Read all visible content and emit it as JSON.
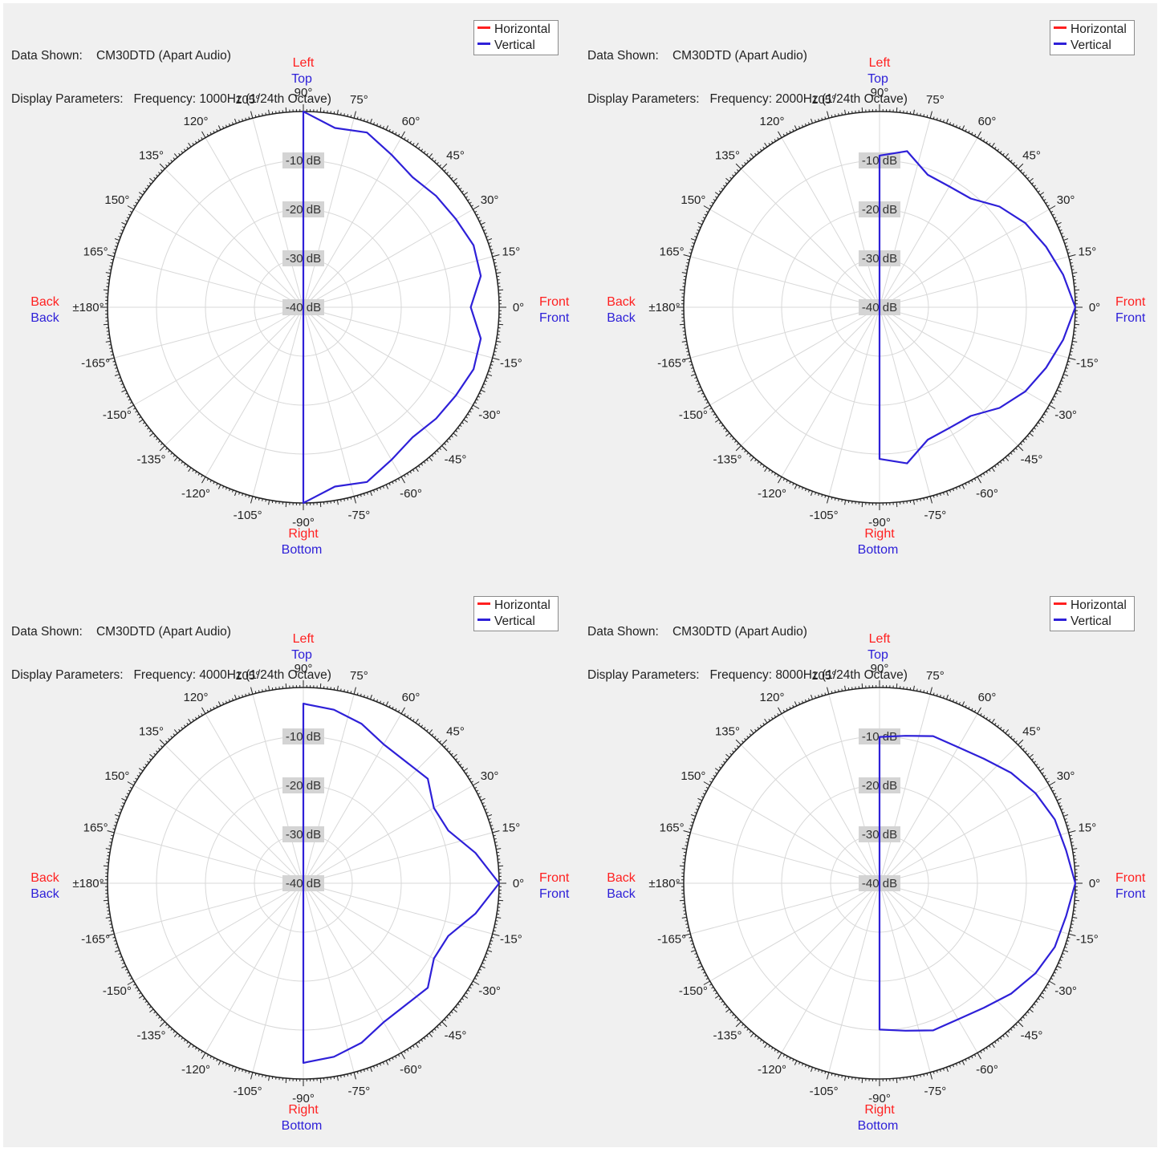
{
  "colors": {
    "horizontal": "#ff2020",
    "vertical": "#2e20d8",
    "grid": "#d8d8d8",
    "axis": "#222222"
  },
  "common": {
    "data_label": "Data Shown:",
    "data_value": "CM30DTD (Apart Audio)",
    "params_label": "Display Parameters:",
    "legend": {
      "horizontal": "Horizontal",
      "vertical": "Vertical"
    },
    "labels": {
      "left": "Left",
      "top": "Top",
      "right": "Right",
      "bottom": "Bottom",
      "back": "Back",
      "front": "Front"
    },
    "db_labels": [
      "-10 dB",
      "-20 dB",
      "-30 dB",
      "-40 dB"
    ],
    "angle_labels": [
      "90°",
      "75°",
      "60°",
      "45°",
      "30°",
      "15°",
      "0°",
      "-15°",
      "-30°",
      "-45°",
      "-60°",
      "-75°",
      "-90°",
      "-105°",
      "-120°",
      "-135°",
      "-150°",
      "-165°",
      "±180°",
      "165°",
      "150°",
      "135°",
      "120°",
      "105°"
    ]
  },
  "chart_data": [
    {
      "type": "polar",
      "params_value": "Frequency: 1000Hz (1/24th Octave)",
      "radial_range_db": [
        -40,
        0
      ],
      "angles_deg": [
        90,
        80,
        70,
        60,
        50,
        40,
        30,
        20,
        10,
        0,
        -10,
        -20,
        -30,
        -40,
        -50,
        -60,
        -70,
        -80,
        -90
      ],
      "series": [
        {
          "name": "Vertical",
          "values_db": [
            0,
            -2.8,
            -2.0,
            -4.0,
            -5.3,
            -4.6,
            -4.0,
            -3.0,
            -3.2,
            -5.8,
            -3.2,
            -3.0,
            -4.0,
            -4.6,
            -5.3,
            -4.0,
            -2.0,
            -2.8,
            0
          ]
        }
      ]
    },
    {
      "type": "polar",
      "params_value": "Frequency: 2000Hz (1/24th Octave)",
      "radial_range_db": [
        -40,
        0
      ],
      "angles_deg": [
        90,
        80,
        70,
        60,
        50,
        40,
        30,
        20,
        10,
        0,
        -10,
        -20,
        -30,
        -40,
        -50,
        -60,
        -70,
        -80,
        -90
      ],
      "series": [
        {
          "name": "Vertical",
          "values_db": [
            -9.0,
            -7.6,
            -11.2,
            -11.5,
            -11.0,
            -8.0,
            -5.6,
            -3.8,
            -1.9,
            0,
            -1.9,
            -3.8,
            -5.6,
            -8.0,
            -11.0,
            -11.5,
            -11.2,
            -7.6,
            -9.0
          ]
        }
      ]
    },
    {
      "type": "polar",
      "params_value": "Frequency: 4000Hz (1/24th Octave)",
      "radial_range_db": [
        -40,
        0
      ],
      "angles_deg": [
        90,
        80,
        70,
        60,
        50,
        40,
        30,
        20,
        10,
        0,
        -10,
        -20,
        -30,
        -40,
        -50,
        -60,
        -70,
        -80,
        -90
      ],
      "series": [
        {
          "name": "Vertical",
          "values_db": [
            -3.3,
            -4.0,
            -5.3,
            -7.2,
            -7.5,
            -6.8,
            -9.2,
            -8.5,
            -4.3,
            0,
            -4.3,
            -8.5,
            -9.2,
            -6.8,
            -7.5,
            -7.2,
            -5.3,
            -4.0,
            -3.3
          ]
        }
      ]
    },
    {
      "type": "polar",
      "params_value": "Frequency: 8000Hz (1/24th Octave)",
      "radial_range_db": [
        -40,
        0
      ],
      "angles_deg": [
        90,
        80,
        70,
        60,
        50,
        40,
        30,
        20,
        10,
        0,
        -10,
        -20,
        -30,
        -40,
        -50,
        -60,
        -70,
        -80,
        -90
      ],
      "series": [
        {
          "name": "Vertical",
          "values_db": [
            -10.1,
            -9.4,
            -8.0,
            -7.9,
            -6.8,
            -4.9,
            -3.2,
            -1.9,
            -1.3,
            0,
            -1.3,
            -1.9,
            -3.2,
            -4.9,
            -6.8,
            -7.9,
            -8.0,
            -9.4,
            -10.1
          ]
        }
      ]
    }
  ]
}
